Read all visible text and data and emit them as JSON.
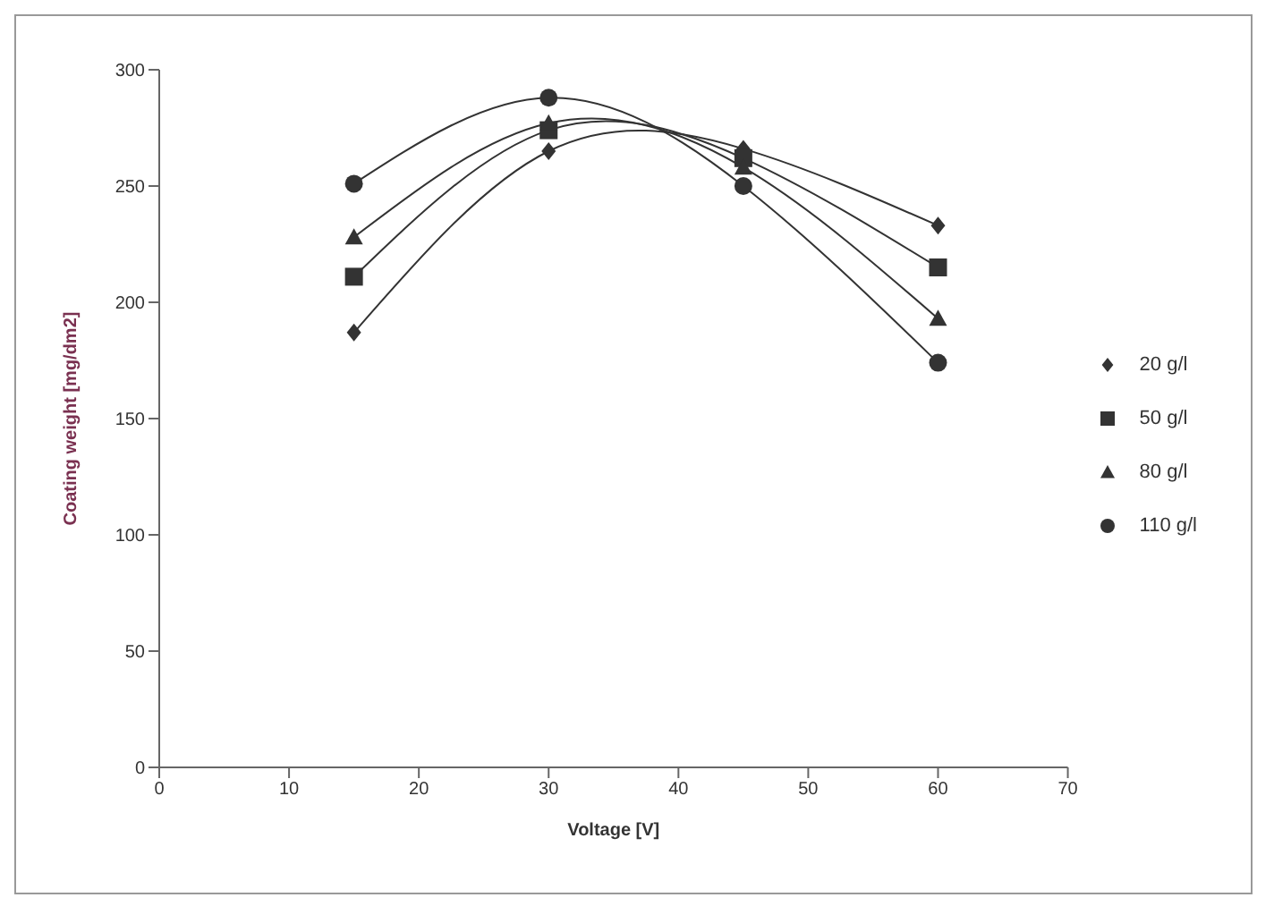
{
  "chart_data": {
    "type": "line",
    "xlabel": "Voltage [V]",
    "ylabel": "Coating weight [mg/dm2]",
    "x": [
      15,
      30,
      45,
      60
    ],
    "xlim": [
      0,
      70
    ],
    "xticks": [
      0,
      10,
      20,
      30,
      40,
      50,
      60,
      70
    ],
    "ylim": [
      0,
      300
    ],
    "yticks": [
      0,
      50,
      100,
      150,
      200,
      250,
      300
    ],
    "grid": false,
    "legend": "right",
    "line_style": "solid",
    "series": [
      {
        "name": "20 g/l",
        "color": "#333333",
        "marker": "diamond",
        "values": [
          187,
          265,
          266,
          233
        ]
      },
      {
        "name": "50 g/l",
        "color": "#333333",
        "marker": "square",
        "values": [
          211,
          274,
          262,
          215
        ]
      },
      {
        "name": "80 g/l",
        "color": "#333333",
        "marker": "triangle",
        "values": [
          228,
          277,
          258,
          193
        ]
      },
      {
        "name": "110 g/l",
        "color": "#333333",
        "marker": "circle",
        "values": [
          251,
          288,
          250,
          174
        ]
      }
    ]
  }
}
